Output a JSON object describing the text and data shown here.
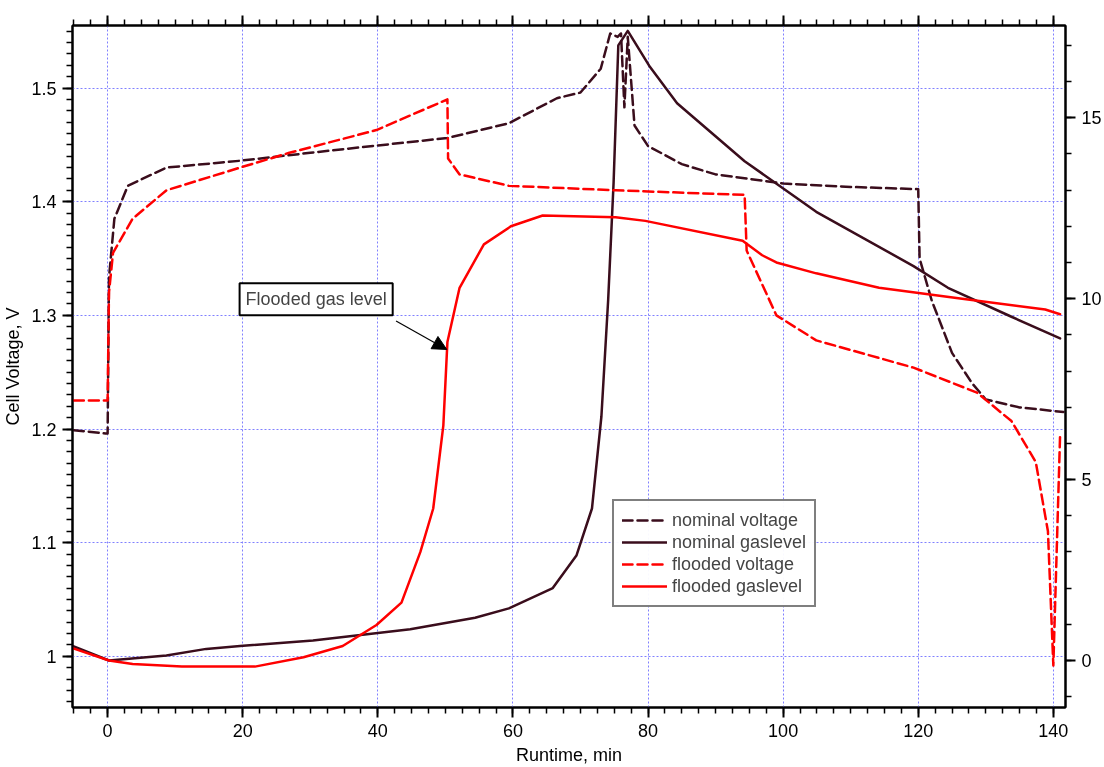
{
  "chart_data": {
    "type": "line",
    "xlabel": "Runtime, min",
    "ylabel": "Cell Voltage, V",
    "xlim": [
      -5.2,
      141.8
    ],
    "ylim": [
      0.955,
      1.555
    ],
    "y2lim": [
      -1.3,
      17.55
    ],
    "xticks": [
      0,
      20,
      40,
      60,
      80,
      100,
      120,
      140
    ],
    "yticks": [
      1.0,
      1.1,
      1.2,
      1.3,
      1.4,
      1.5
    ],
    "y2ticks": [
      0,
      5,
      10,
      15
    ],
    "grid": true,
    "legend": "bottom right",
    "line_style": "solid",
    "marker": "none",
    "annotations": [
      {
        "text": "Flooded gas level",
        "x": 50.2,
        "y": 1.27
      }
    ],
    "series": [
      {
        "name": "nominal voltage",
        "color": "#3a0d1c",
        "line_style": "dashed",
        "x": [
          -5,
          -0.3,
          0,
          0.2,
          1,
          3,
          8.7,
          19.6,
          30,
          37.7,
          50.3,
          59.4,
          66.5,
          70,
          73,
          74.4,
          75.5,
          76,
          76.5,
          77,
          78,
          80,
          85,
          90,
          100,
          110,
          120,
          120.2,
          122,
          125,
          128,
          130,
          135,
          141.5
        ],
        "values": [
          1.199,
          1.196,
          1.196,
          1.333,
          1.385,
          1.414,
          1.43,
          1.436,
          1.443,
          1.448,
          1.456,
          1.469,
          1.491,
          1.496,
          1.517,
          1.548,
          1.545,
          1.548,
          1.483,
          1.545,
          1.467,
          1.449,
          1.433,
          1.424,
          1.416,
          1.413,
          1.411,
          1.35,
          1.313,
          1.267,
          1.24,
          1.226,
          1.219,
          1.215
        ]
      },
      {
        "name": "nominal gaslevel",
        "color": "#3a0d1c",
        "axis": "y2",
        "x": [
          -5.2,
          0.2,
          8.7,
          14.6,
          19.6,
          30.4,
          44.8,
          54.4,
          59.4,
          65.9,
          69.4,
          71.7,
          73.1,
          74.1,
          74.9,
          75.6,
          77,
          80.3,
          84.3,
          94.3,
          104.9,
          119.3,
          124.4,
          133.8,
          141
        ],
        "values": [
          0.4,
          0,
          0.14,
          0.32,
          0.4,
          0.55,
          0.86,
          1.18,
          1.44,
          2.0,
          2.9,
          4.2,
          6.75,
          9.97,
          13.2,
          17.0,
          17.4,
          16.4,
          15.4,
          13.8,
          12.4,
          10.9,
          10.3,
          9.5,
          8.9
        ]
      },
      {
        "name": "flooded voltage",
        "color": "#ff0000",
        "line_style": "dashed",
        "x": [
          -5,
          -0.2,
          0,
          0.2,
          0.8,
          3.7,
          8.7,
          19.6,
          26.9,
          39.8,
          50.3,
          50.4,
          52.1,
          59.4,
          75.2,
          94.3,
          94.6,
          99,
          104.9,
          119.3,
          128.7,
          133.8,
          137.4,
          139.2,
          140,
          141
        ],
        "values": [
          1.225,
          1.225,
          1.225,
          1.32,
          1.355,
          1.385,
          1.41,
          1.43,
          1.443,
          1.463,
          1.49,
          1.438,
          1.424,
          1.414,
          1.41,
          1.406,
          1.357,
          1.3,
          1.278,
          1.254,
          1.232,
          1.207,
          1.171,
          1.11,
          0.992,
          1.195
        ]
      },
      {
        "name": "flooded gaslevel",
        "color": "#ff0000",
        "axis": "y2",
        "x": [
          -5.2,
          0.2,
          3.7,
          11,
          21.8,
          29,
          34.8,
          39.8,
          43.5,
          46.3,
          48.2,
          49.7,
          50.3,
          52.1,
          55.7,
          59.7,
          64.4,
          75.2,
          79.6,
          94,
          96.9,
          99,
          104.9,
          114.2,
          126.5,
          138.8,
          141
        ],
        "values": [
          0.34,
          0,
          -0.1,
          -0.17,
          -0.17,
          0.09,
          0.4,
          0.98,
          1.6,
          3.0,
          4.2,
          6.5,
          8.8,
          10.3,
          11.5,
          12.0,
          12.3,
          12.25,
          12.15,
          11.6,
          11.2,
          11.0,
          10.7,
          10.3,
          10.0,
          9.7,
          9.57
        ]
      }
    ]
  }
}
